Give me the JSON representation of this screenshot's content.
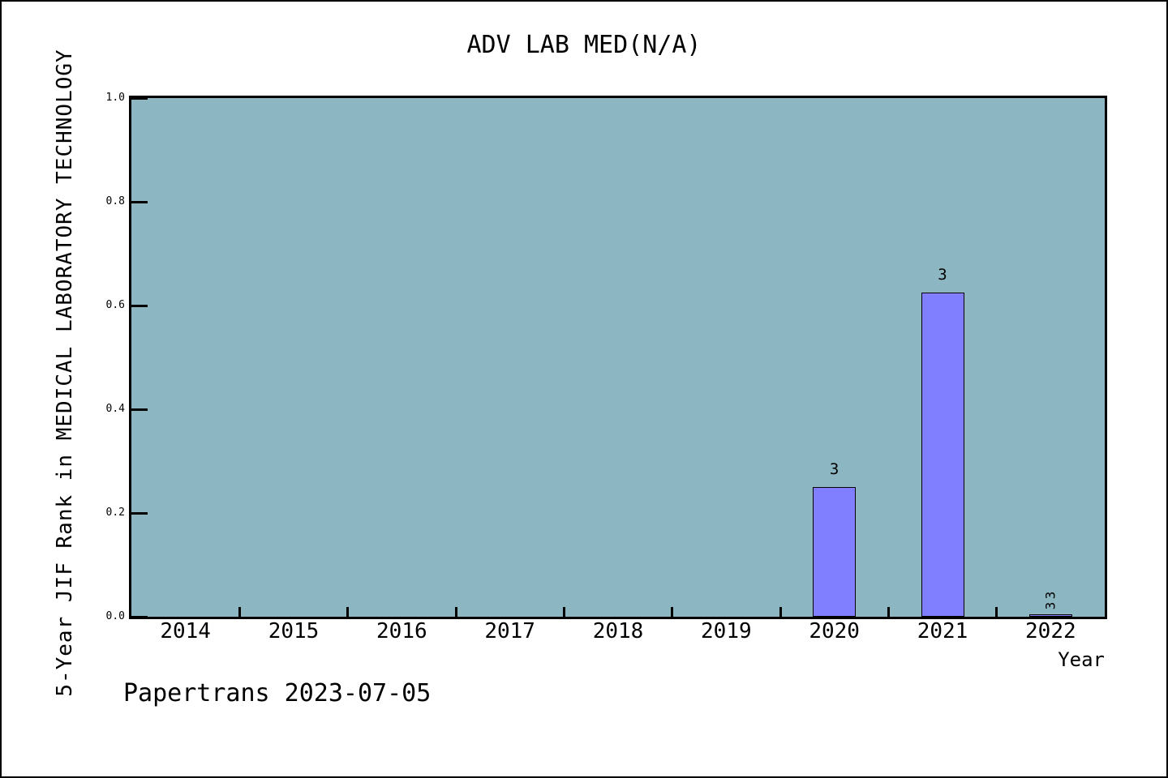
{
  "footer": {
    "text": "Papertrans 2023-07-05"
  },
  "chart_data": {
    "type": "bar",
    "title": "ADV LAB MED(N/A)",
    "xlabel": "Year",
    "ylabel": "5-Year JIF Rank in MEDICAL LABORATORY TECHNOLOGY",
    "categories": [
      "2014",
      "2015",
      "2016",
      "2017",
      "2018",
      "2019",
      "2020",
      "2021",
      "2022"
    ],
    "ylim": [
      0.0,
      1.0
    ],
    "yticks": [
      0.0,
      0.2,
      0.4,
      0.6,
      0.8,
      1.0
    ],
    "ytick_labels": [
      "0.0",
      "0.2",
      "0.4",
      "0.6",
      "0.8",
      "1.0"
    ],
    "grid": false,
    "legend": false,
    "plot_background": "#8db6c3",
    "bar_fill": "#7f7fff",
    "bar_edge": "#000000",
    "bars": [
      {
        "category": "2020",
        "value": 0.25,
        "labels": [
          "3"
        ],
        "label_rotation": 0
      },
      {
        "category": "2021",
        "value": 0.625,
        "labels": [
          "3"
        ],
        "label_rotation": 0
      },
      {
        "category": "2022",
        "value": 0.005,
        "labels": [
          "3",
          "3"
        ],
        "label_rotation": -90
      }
    ]
  }
}
